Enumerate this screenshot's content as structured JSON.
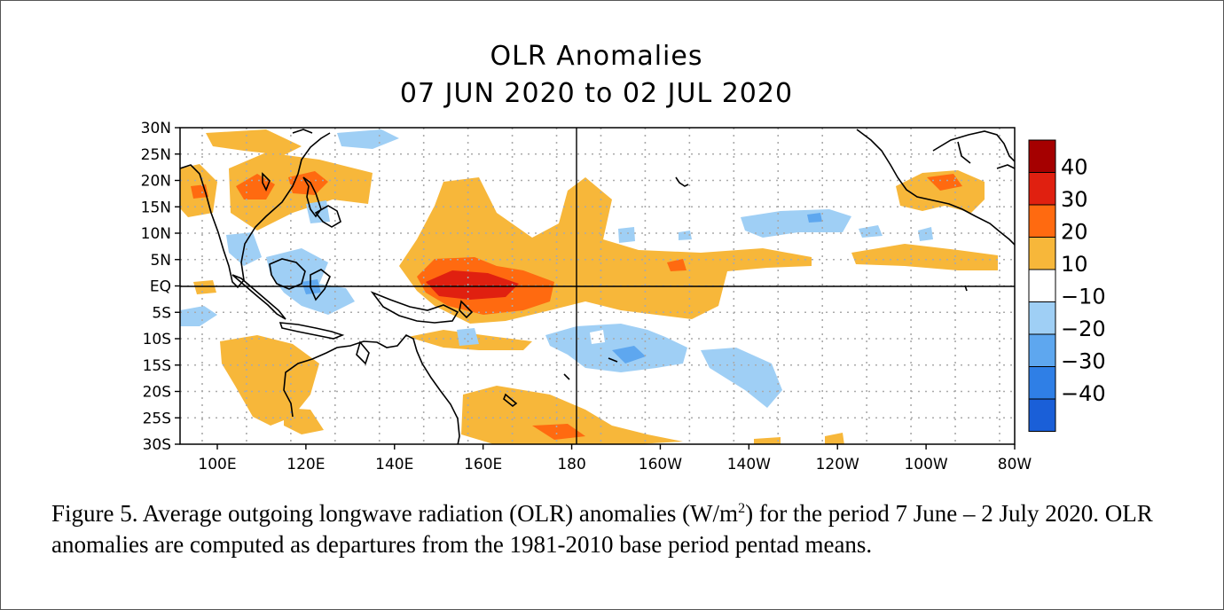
{
  "title": "OLR Anomalies",
  "subtitle": "07 JUN 2020 to 02 JUL 2020",
  "lat_labels": [
    "30N",
    "25N",
    "20N",
    "15N",
    "10N",
    "5N",
    "EQ",
    "5S",
    "10S",
    "15S",
    "20S",
    "25S",
    "30S"
  ],
  "lon_labels": [
    "100E",
    "120E",
    "140E",
    "160E",
    "180",
    "160W",
    "140W",
    "120W",
    "100W",
    "80W"
  ],
  "colorbar": {
    "labels": [
      "40",
      "30",
      "20",
      "10",
      "−10",
      "−20",
      "−30",
      "−40"
    ],
    "colors": [
      "#a50000",
      "#e02010",
      "#ff6a10",
      "#f7b73a",
      "#ffffff",
      "#9fcff5",
      "#5ea7ef",
      "#2f7fe6",
      "#1a5fd8"
    ]
  },
  "caption": {
    "part1": "Figure 5. Average outgoing longwave radiation (OLR) anomalies (W/m",
    "sup": "2",
    "part2": ") for the period 7 June – 2 July 2020.  OLR anomalies are computed as departures from the 1981-2010 base period pentad means."
  }
}
